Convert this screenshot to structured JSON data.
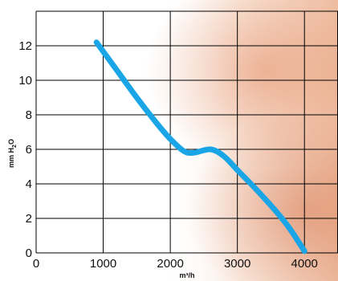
{
  "chart_data": {
    "type": "line",
    "title": "",
    "xlabel": "m³/h",
    "ylabel_parts": [
      "mm H",
      "2",
      "O"
    ],
    "xlim": [
      0,
      4500
    ],
    "ylim": [
      0,
      14
    ],
    "x_ticks": [
      0,
      1000,
      2000,
      3000,
      4000
    ],
    "y_ticks": [
      0,
      2,
      4,
      6,
      8,
      10,
      12
    ],
    "x_tick_labels": [
      "0",
      "1000",
      "2000",
      "3000",
      "4000"
    ],
    "y_tick_labels": [
      "0",
      "2",
      "4",
      "6",
      "8",
      "10",
      "12"
    ],
    "grid": true,
    "legend": "none",
    "series": [
      {
        "color": "#1aa6e6",
        "x": [
          900,
          1200,
          1500,
          1800,
          2000,
          2200,
          2350,
          2600,
          2800,
          3000,
          3300,
          3600,
          3800,
          4000
        ],
        "y": [
          12.2,
          10.6,
          9.0,
          7.5,
          6.6,
          5.9,
          5.8,
          6.0,
          5.6,
          4.8,
          3.6,
          2.3,
          1.3,
          0.1
        ]
      }
    ]
  }
}
